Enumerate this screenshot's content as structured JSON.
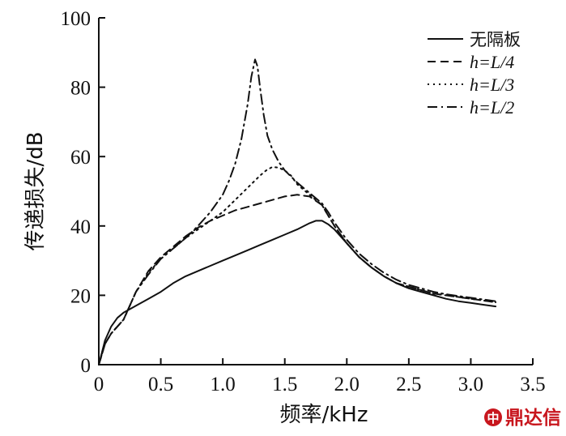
{
  "chart_data": {
    "type": "line",
    "xlabel": "频率/kHz",
    "ylabel": "传递损失/dB",
    "xlim": [
      0,
      3.5
    ],
    "ylim": [
      0,
      100
    ],
    "xticks": [
      0,
      0.5,
      1.0,
      1.5,
      2.0,
      2.5,
      3.0,
      3.5
    ],
    "xtick_labels": [
      "0",
      "0.5",
      "1.0",
      "1.5",
      "2.0",
      "2.5",
      "3.0",
      "3.5"
    ],
    "yticks": [
      0,
      20,
      40,
      60,
      80,
      100
    ],
    "ytick_labels": [
      "0",
      "20",
      "40",
      "60",
      "80",
      "100"
    ],
    "grid": false,
    "legend_position": "top-right",
    "series": [
      {
        "name": "无隔板",
        "style": "solid",
        "x": [
          0,
          0.05,
          0.1,
          0.15,
          0.2,
          0.25,
          0.3,
          0.4,
          0.5,
          0.6,
          0.7,
          0.8,
          0.9,
          1.0,
          1.1,
          1.2,
          1.3,
          1.4,
          1.5,
          1.6,
          1.7,
          1.75,
          1.8,
          1.85,
          1.9,
          2.0,
          2.1,
          2.2,
          2.3,
          2.4,
          2.5,
          2.6,
          2.7,
          2.8,
          2.9,
          3.0,
          3.1,
          3.2
        ],
        "y": [
          0,
          7,
          11,
          13.5,
          15,
          16,
          17,
          19,
          21,
          23.5,
          25.5,
          27,
          28.5,
          30,
          31.5,
          33,
          34.5,
          36,
          37.5,
          39,
          40.8,
          41.5,
          41.5,
          40.5,
          39,
          35,
          31,
          28,
          25.5,
          23.5,
          22,
          21,
          20,
          19,
          18.3,
          17.8,
          17.3,
          16.8
        ]
      },
      {
        "name": "h=L/4",
        "style": "dashed",
        "x": [
          0,
          0.05,
          0.1,
          0.15,
          0.2,
          0.25,
          0.3,
          0.4,
          0.5,
          0.6,
          0.7,
          0.8,
          0.9,
          1.0,
          1.1,
          1.2,
          1.3,
          1.4,
          1.5,
          1.6,
          1.7,
          1.8,
          1.85,
          1.9,
          2.0,
          2.1,
          2.2,
          2.3,
          2.4,
          2.5,
          2.6,
          2.7,
          2.8,
          2.9,
          3.0,
          3.1,
          3.2
        ],
        "y": [
          0,
          6,
          9,
          11,
          13,
          17,
          21,
          27,
          31,
          34,
          37,
          39.5,
          41.5,
          43,
          44.5,
          45.5,
          46.5,
          47.5,
          48.5,
          49,
          48.5,
          46,
          43,
          40,
          35,
          31,
          28,
          25.5,
          23.5,
          22.5,
          21.5,
          20.5,
          20,
          19.5,
          19,
          18.5,
          18
        ]
      },
      {
        "name": "h=L/3",
        "style": "dotted",
        "x": [
          0,
          0.05,
          0.1,
          0.15,
          0.2,
          0.25,
          0.3,
          0.4,
          0.5,
          0.6,
          0.7,
          0.8,
          0.9,
          1.0,
          1.1,
          1.2,
          1.3,
          1.35,
          1.4,
          1.45,
          1.5,
          1.55,
          1.6,
          1.7,
          1.8,
          1.85,
          1.9,
          2.0,
          2.1,
          2.2,
          2.3,
          2.4,
          2.5,
          2.6,
          2.7,
          2.8,
          2.9,
          3.0,
          3.1,
          3.2
        ],
        "y": [
          0,
          6,
          9,
          11,
          13,
          17,
          21,
          26.5,
          30.5,
          33.5,
          36.5,
          39,
          41.5,
          44,
          47.5,
          51,
          54.5,
          56,
          57,
          56.8,
          56,
          54.5,
          52,
          49,
          46,
          43,
          40,
          35,
          31,
          28,
          25.5,
          23.5,
          22.5,
          21.5,
          20.5,
          20,
          19.5,
          19,
          18.5,
          18
        ]
      },
      {
        "name": "h=L/2",
        "style": "dashdot",
        "x": [
          0,
          0.05,
          0.1,
          0.15,
          0.2,
          0.25,
          0.3,
          0.4,
          0.5,
          0.6,
          0.7,
          0.8,
          0.9,
          1.0,
          1.05,
          1.1,
          1.15,
          1.2,
          1.23,
          1.26,
          1.28,
          1.3,
          1.33,
          1.36,
          1.4,
          1.45,
          1.5,
          1.6,
          1.7,
          1.8,
          1.85,
          1.9,
          2.0,
          2.1,
          2.2,
          2.3,
          2.4,
          2.5,
          2.6,
          2.7,
          2.8,
          2.9,
          3.0,
          3.1,
          3.2
        ],
        "y": [
          0,
          6,
          9,
          11,
          13,
          17,
          21,
          26,
          30.5,
          33.5,
          36.5,
          40,
          44,
          49,
          53,
          58,
          65,
          75,
          83,
          88,
          86,
          80,
          72,
          66,
          62,
          58.5,
          56,
          52.5,
          49.5,
          46.5,
          44,
          41,
          36,
          32,
          29,
          26.5,
          24.5,
          23,
          22,
          21,
          20.3,
          19.8,
          19.3,
          18.8,
          18.3
        ]
      }
    ]
  },
  "watermark": {
    "text": "鼎达信",
    "color": "#c8161d"
  }
}
